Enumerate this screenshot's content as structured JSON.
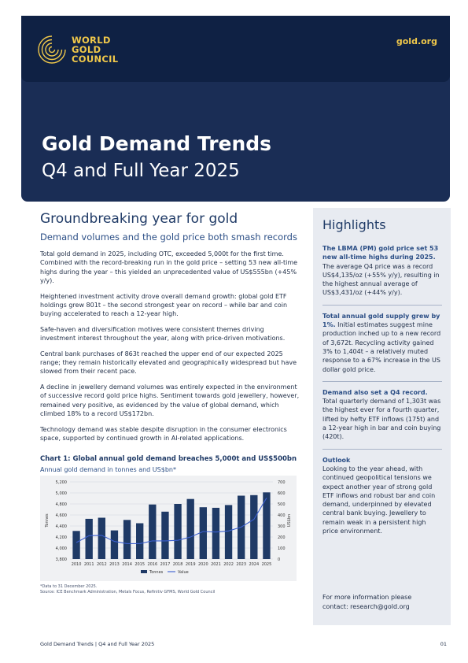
{
  "brand": {
    "logo_line1": "WORLD",
    "logo_line2": "GOLD",
    "logo_line3": "COUNCIL",
    "site": "gold.org",
    "gold_color": "#f0c84a",
    "navy_color": "#1a2d55"
  },
  "cover": {
    "title": "Gold Demand Trends",
    "subtitle": "Q4 and Full Year 2025"
  },
  "main": {
    "heading": "Groundbreaking year for gold",
    "subheading": "Demand volumes and the gold price both smash records",
    "paragraphs": [
      "Total gold demand in 2025, including OTC, exceeded 5,000t for the first time. Combined with the record-breaking run in the gold price – setting 53 new all-time highs during the year – this yielded an unprecedented value of US$555bn (+45% y/y).",
      "Heightened investment activity drove overall demand growth: global gold ETF holdings grew 801t – the second strongest year on record – while bar and coin buying accelerated to reach a 12-year high.",
      "Safe-haven and diversification motives were consistent themes driving investment interest throughout the year, along with price-driven motivations.",
      "Central bank purchases of 863t reached the upper end of our expected 2025 range; they remain historically elevated and geographically widespread but have slowed from their recent pace.",
      "A decline in jewellery demand volumes was entirely expected in the environment of successive record gold price highs. Sentiment towards gold jewellery, however, remained very positive, as evidenced by the value of global demand, which climbed 18% to a record US$172bn.",
      "Technology demand was stable despite disruption in the consumer electronics space, supported by continued growth in AI-related applications."
    ]
  },
  "chart": {
    "heading": "Chart 1: Global annual gold demand breaches 5,000t and US$500bn",
    "subheading": "Annual gold demand in tonnes and US$bn*",
    "footnote_1": "*Data to 31 December 2025.",
    "footnote_2": "Source: ICE Benchmark Administration, Metals Focus, Refinitiv GFMS, World Gold Council"
  },
  "chart_data": {
    "type": "bar",
    "categories": [
      "2010",
      "2011",
      "2012",
      "2013",
      "2014",
      "2015",
      "2016",
      "2017",
      "2018",
      "2019",
      "2020",
      "2021",
      "2022",
      "2023",
      "2024",
      "2025"
    ],
    "series": [
      {
        "name": "Tonnes",
        "type": "bar",
        "axis": "left",
        "color": "#1f3a66",
        "values": [
          4310,
          4530,
          4550,
          4320,
          4510,
          4450,
          4790,
          4660,
          4800,
          4890,
          4740,
          4730,
          4780,
          4950,
          4960,
          5010
        ]
      },
      {
        "name": "Value",
        "type": "line",
        "axis": "right",
        "color": "#3b5fcf",
        "values": [
          150,
          212,
          215,
          160,
          140,
          140,
          165,
          165,
          170,
          200,
          250,
          245,
          255,
          290,
          360,
          555
        ]
      }
    ],
    "ylabel": "Tonnes",
    "y2label": "US$bn",
    "ylim": [
      3800,
      5200
    ],
    "yticks": [
      "5,200",
      "5,000",
      "4,800",
      "4,600",
      "4,400",
      "4,200",
      "4,000",
      "3,800"
    ],
    "y2lim": [
      0,
      700
    ],
    "y2ticks": [
      "700",
      "600",
      "500",
      "400",
      "300",
      "200",
      "100",
      "0"
    ],
    "grid": true,
    "legend": "bottom-center"
  },
  "highlights": {
    "heading": "Highlights",
    "blocks": [
      {
        "bold": "The LBMA (PM) gold price set 53 new all-time highs during 2025.",
        "text": " The average Q4 price was a record US$4,135/oz (+55% y/y), resulting in the highest annual average of US$3,431/oz (+44% y/y)."
      },
      {
        "bold": "Total annual gold supply grew by 1%.",
        "text": " Initial estimates suggest mine production inched up to a new record of 3,672t. Recycling activity gained 3% to 1,404t – a relatively muted response to a 67% increase in the US dollar gold price."
      },
      {
        "bold": "Demand also set a Q4 record.",
        "text": " Total quarterly demand of 1,303t was the highest ever for a fourth quarter, lifted by hefty ETF inflows (175t) and a 12-year high in bar and coin buying (420t)."
      }
    ],
    "outlook_heading": "Outlook",
    "outlook_text": "Looking to the year ahead, with continued geopolitical tensions we expect another year of strong gold ETF inflows and robust bar and coin demand, underpinned by elevated central bank buying. Jewellery to remain weak in a persistent high price environment.",
    "contact_line1": "For more information please",
    "contact_line2": "contact: research@gold.org"
  },
  "footer": {
    "left": "Gold Demand Trends | Q4 and Full Year 2025",
    "page": "01"
  }
}
